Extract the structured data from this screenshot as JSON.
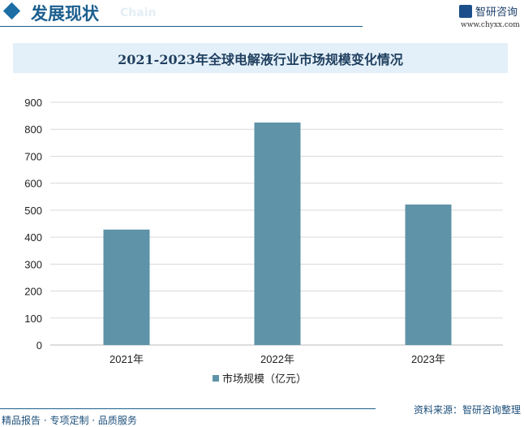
{
  "header": {
    "section_title": "发展现状",
    "section_subtitle": "Chain",
    "logo_text": "智研咨询",
    "url": "www.chyxx.com"
  },
  "chart_data": {
    "type": "bar",
    "title": "2021-2023年全球电解液行业市场规模变化情况",
    "categories": [
      "2021年",
      "2022年",
      "2023年"
    ],
    "series": [
      {
        "name": "市场规模（亿元）",
        "values": [
          428,
          825,
          521
        ],
        "color": "#5e93a8"
      }
    ],
    "ylim": [
      0,
      900
    ],
    "yticks": [
      "0",
      "100",
      "200",
      "300",
      "400",
      "500",
      "600",
      "700",
      "800",
      "900"
    ],
    "grid": true,
    "legend": "bottom"
  },
  "footer": {
    "source": "资料来源：智研咨询整理",
    "slogan": "精品报告 · 专项定制 · 品质服务"
  }
}
